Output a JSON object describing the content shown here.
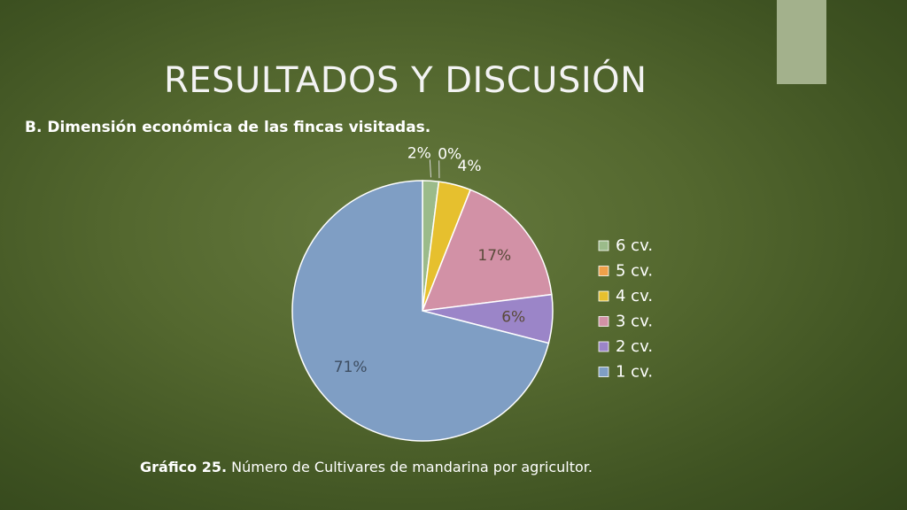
{
  "slide": {
    "title": "RESULTADOS Y DISCUSIÓN",
    "subtitle": "B. Dimensión económica de las fincas visitadas.",
    "caption_bold": "Gráfico 25.",
    "caption_text": " Número de Cultivares de mandarina por agricultor."
  },
  "colors": {
    "tab": "#a3b18c",
    "title_text": "#f3f3f3"
  },
  "chart_data": {
    "type": "pie",
    "title": "",
    "legend_position": "right",
    "slices": [
      {
        "name": "6 cv.",
        "value": 2,
        "label": "2%",
        "color": "#9bbb8a"
      },
      {
        "name": "5 cv.",
        "value": 0,
        "label": "0%",
        "color": "#f0a04a"
      },
      {
        "name": "4 cv.",
        "value": 4,
        "label": "4%",
        "color": "#e6c02e"
      },
      {
        "name": "3 cv.",
        "value": 17,
        "label": "17%",
        "color": "#d291a6"
      },
      {
        "name": "2 cv.",
        "value": 6,
        "label": "6%",
        "color": "#9b85c8"
      },
      {
        "name": "1 cv.",
        "value": 71,
        "label": "71%",
        "color": "#7f9ec4"
      }
    ]
  }
}
